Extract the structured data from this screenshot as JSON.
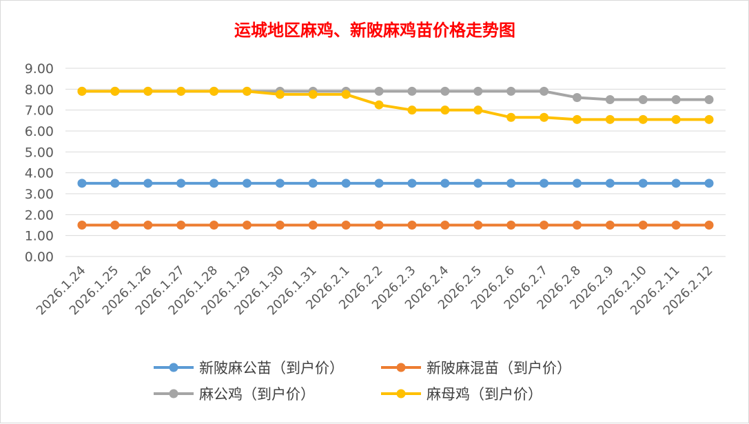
{
  "chart_data": {
    "type": "line",
    "title": "运城地区麻鸡、新陂麻鸡苗价格走势图",
    "xlabel": "",
    "ylabel": "",
    "ylim": [
      0,
      9
    ],
    "yticks": [
      "0.00",
      "1.00",
      "2.00",
      "3.00",
      "4.00",
      "5.00",
      "6.00",
      "7.00",
      "8.00",
      "9.00"
    ],
    "grid": true,
    "legend_position": "bottom",
    "categories": [
      "2026.1.24",
      "2026.1.25",
      "2026.1.26",
      "2026.1.27",
      "2026.1.28",
      "2026.1.29",
      "2026.1.30",
      "2026.1.31",
      "2026.2.1",
      "2026.2.2",
      "2026.2.3",
      "2026.2.4",
      "2026.2.5",
      "2026.2.6",
      "2026.2.7",
      "2026.2.8",
      "2026.2.9",
      "2026.2.10",
      "2026.2.11",
      "2026.2.12"
    ],
    "series": [
      {
        "name": "新陂麻公苗（到户价）",
        "color": "#5b9bd5",
        "values": [
          3.5,
          3.5,
          3.5,
          3.5,
          3.5,
          3.5,
          3.5,
          3.5,
          3.5,
          3.5,
          3.5,
          3.5,
          3.5,
          3.5,
          3.5,
          3.5,
          3.5,
          3.5,
          3.5,
          3.5
        ]
      },
      {
        "name": "新陂麻混苗（到户价）",
        "color": "#ed7d31",
        "values": [
          1.5,
          1.5,
          1.5,
          1.5,
          1.5,
          1.5,
          1.5,
          1.5,
          1.5,
          1.5,
          1.5,
          1.5,
          1.5,
          1.5,
          1.5,
          1.5,
          1.5,
          1.5,
          1.5,
          1.5
        ]
      },
      {
        "name": "麻公鸡（到户价）",
        "color": "#a5a5a5",
        "values": [
          7.9,
          7.9,
          7.9,
          7.9,
          7.9,
          7.9,
          7.9,
          7.9,
          7.9,
          7.9,
          7.9,
          7.9,
          7.9,
          7.9,
          7.9,
          7.6,
          7.5,
          7.5,
          7.5,
          7.5
        ]
      },
      {
        "name": "麻母鸡（到户价）",
        "color": "#ffc000",
        "values": [
          7.9,
          7.9,
          7.9,
          7.9,
          7.9,
          7.9,
          7.75,
          7.75,
          7.75,
          7.25,
          7.0,
          7.0,
          7.0,
          6.65,
          6.65,
          6.55,
          6.55,
          6.55,
          6.55,
          6.55
        ]
      }
    ]
  }
}
